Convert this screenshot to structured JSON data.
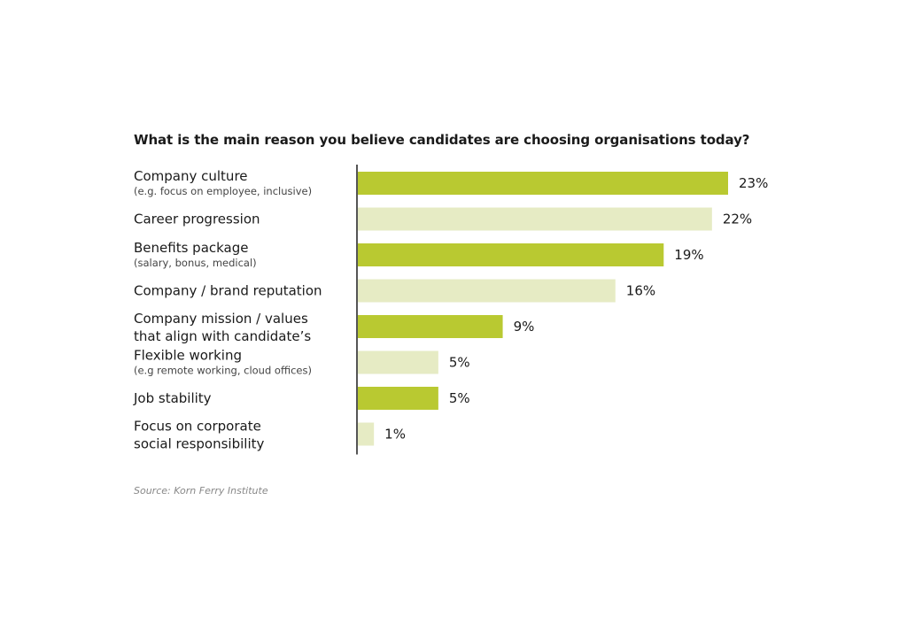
{
  "chart_data": {
    "type": "bar",
    "orientation": "horizontal",
    "title": "What is the main reason you believe candidates are choosing organisations today?",
    "source": "Source:  Korn Ferry Institute",
    "categories": [
      {
        "label": "Company culture",
        "sublabel": "(e.g. focus on employee, inclusive)",
        "value": 23,
        "value_label": "23%",
        "shade": "dark"
      },
      {
        "label": "Career progression",
        "sublabel": "",
        "value": 22,
        "value_label": "22%",
        "shade": "light"
      },
      {
        "label": "Benefits package",
        "sublabel": "(salary, bonus, medical)",
        "value": 19,
        "value_label": "19%",
        "shade": "dark"
      },
      {
        "label": "Company / brand reputation",
        "sublabel": "",
        "value": 16,
        "value_label": "16%",
        "shade": "light"
      },
      {
        "label": "Company mission / values\nthat align with candidate’s",
        "sublabel": "",
        "value": 9,
        "value_label": "9%",
        "shade": "dark"
      },
      {
        "label": "Flexible working",
        "sublabel": "(e.g remote working, cloud offices)",
        "value": 5,
        "value_label": "5%",
        "shade": "light"
      },
      {
        "label": "Job stability",
        "sublabel": "",
        "value": 5,
        "value_label": "5%",
        "shade": "dark"
      },
      {
        "label": "Focus on corporate\nsocial responsibility",
        "sublabel": "",
        "value": 1,
        "value_label": "1%",
        "shade": "light"
      }
    ],
    "xlim": [
      0,
      23
    ],
    "colors": {
      "dark": "#b9c931",
      "light": "#e6ebc4",
      "axis": "#555555"
    }
  }
}
